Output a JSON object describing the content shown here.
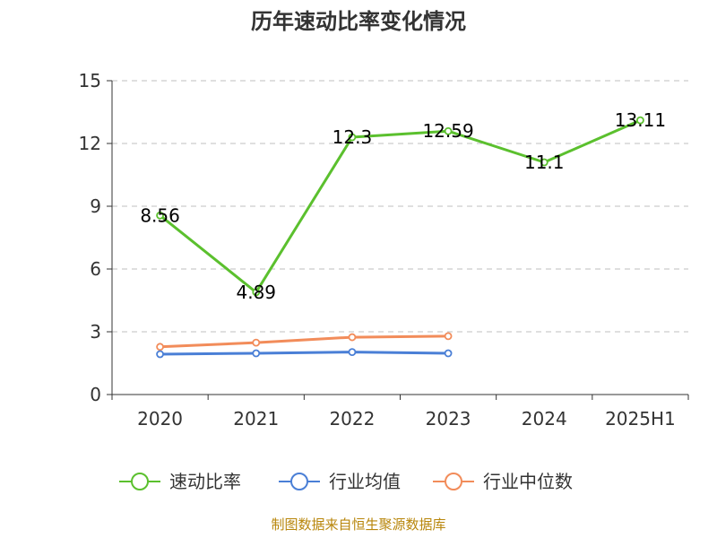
{
  "source_note": "制图数据来自恒生聚源数据库",
  "colors": {
    "grid": "#cccccc",
    "axis": "#333333"
  },
  "chart_data": {
    "type": "line",
    "title": "历年速动比率变化情况",
    "categories": [
      "2020",
      "2021",
      "2022",
      "2023",
      "2024",
      "2025H1"
    ],
    "ylim": [
      0,
      15
    ],
    "yticks": [
      0,
      3,
      6,
      9,
      12,
      15
    ],
    "grid": "horizontal-dashed",
    "legend_position": "bottom",
    "series": [
      {
        "name": "速动比率",
        "color": "#5bc02e",
        "values": [
          8.56,
          4.89,
          12.3,
          12.59,
          11.1,
          13.11
        ],
        "labels": [
          "8.56",
          "4.89",
          "12.3",
          "12.59",
          "11.1",
          "13.11"
        ]
      },
      {
        "name": "行业均值",
        "color": "#4a7fd6",
        "values": [
          1.93,
          1.97,
          2.03,
          1.97,
          null,
          null
        ]
      },
      {
        "name": "行业中位数",
        "color": "#f28c5a",
        "values": [
          2.28,
          2.48,
          2.74,
          2.79,
          null,
          null
        ]
      }
    ]
  }
}
